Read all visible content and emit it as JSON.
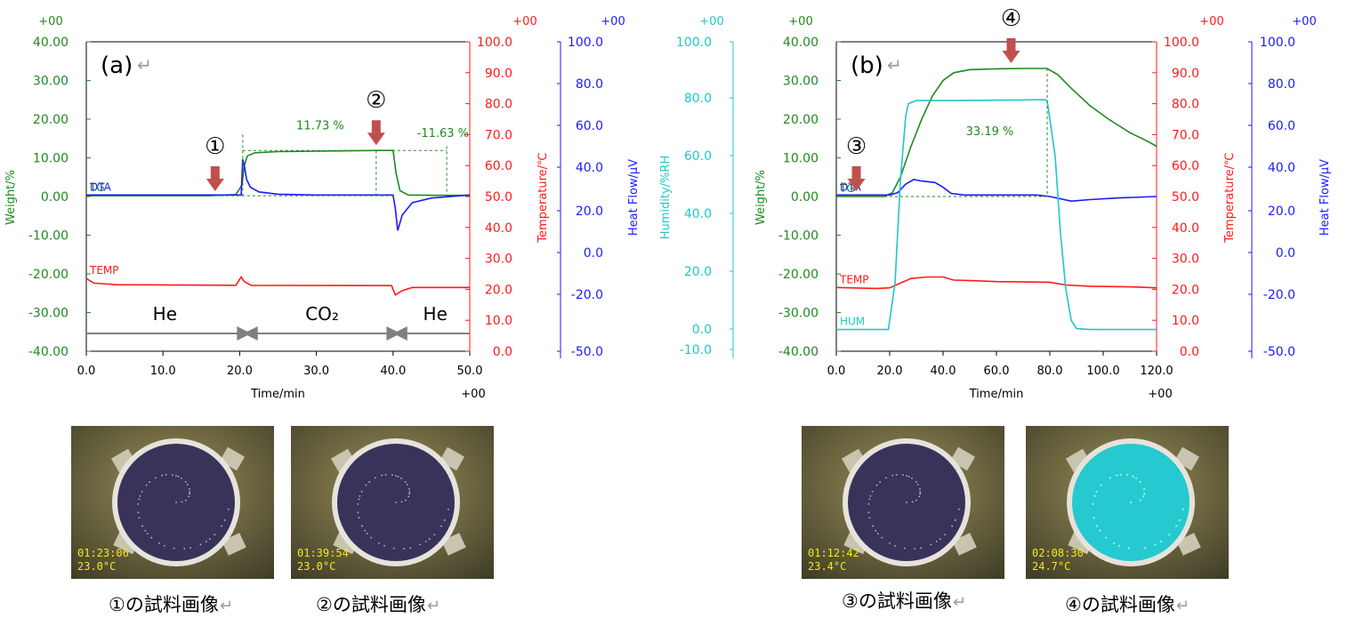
{
  "colors": {
    "weight": "#1f8a1f",
    "temperature": "#ff1a1a",
    "heat_flow": "#1a1aff",
    "humidity": "#1fc8c8",
    "arrow": "#c0504d",
    "atmosphere": "#808080",
    "stamp": "#f2ea1a",
    "text": "#000000"
  },
  "chart_data": [
    {
      "id": "a",
      "type": "line",
      "panel_label": "(a)",
      "return_mark": "↵",
      "xlabel": "Time/min",
      "xlim": [
        0,
        50
      ],
      "x_ticks": [
        "0.0",
        "10.0",
        "20.0",
        "30.0",
        "40.0",
        "50.0"
      ],
      "x_tick_values": [
        0,
        10,
        20,
        30,
        40,
        50
      ],
      "x_exp": "+00",
      "axes": {
        "weight": {
          "label": "Weight/%",
          "exp": "+00",
          "ylim": [
            -40,
            40
          ],
          "ticks": [
            "40.00",
            "30.00",
            "20.00",
            "10.00",
            "0.00",
            "-10.00",
            "-20.00",
            "-30.00",
            "-40.00"
          ],
          "tick_values": [
            40,
            30,
            20,
            10,
            0,
            -10,
            -20,
            -30,
            -40
          ]
        },
        "temperature": {
          "label": "Temperature/℃",
          "exp": "+00",
          "ylim": [
            0,
            100
          ],
          "ticks": [
            "100.0",
            "90.0",
            "80.0",
            "70.0",
            "60.0",
            "50.0",
            "40.0",
            "30.0",
            "20.0",
            "10.0",
            "0.0"
          ],
          "tick_values": [
            100,
            90,
            80,
            70,
            60,
            50,
            40,
            30,
            20,
            10,
            0
          ]
        },
        "heat_flow": {
          "label": "Heat Flow/μV",
          "exp": "+00",
          "ticks": [
            "100.0",
            "80.0",
            "60.0",
            "40.0",
            "20.0",
            "0.0",
            "-20.0",
            "-50.0"
          ],
          "tick_values": [
            100,
            80,
            60,
            40,
            20,
            0,
            -20,
            -50
          ],
          "tick_temp_positions": [
            100,
            90,
            80,
            70,
            60,
            50,
            40,
            30,
            20,
            10,
            0
          ]
        }
      },
      "series": [
        {
          "name": "TG",
          "axis": "weight",
          "color_key": "weight",
          "points": [
            [
              0,
              0.2
            ],
            [
              16,
              0.2
            ],
            [
              19.5,
              0.5
            ],
            [
              20.3,
              3
            ],
            [
              20.6,
              8
            ],
            [
              21,
              10.5
            ],
            [
              22,
              11.3
            ],
            [
              25,
              11.6
            ],
            [
              38,
              11.9
            ],
            [
              40,
              11.9
            ],
            [
              40.4,
              6
            ],
            [
              40.9,
              1.5
            ],
            [
              42,
              0.4
            ],
            [
              46,
              0.3
            ],
            [
              50,
              0.3
            ]
          ]
        },
        {
          "name": "DTA",
          "axis": "heat_flow",
          "color_key": "heat_flow",
          "points": [
            [
              0,
              1
            ],
            [
              20.2,
              1
            ],
            [
              20.4,
              24
            ],
            [
              20.6,
              20
            ],
            [
              20.9,
              11
            ],
            [
              21.4,
              6
            ],
            [
              22.5,
              3
            ],
            [
              25,
              1.5
            ],
            [
              30,
              1
            ],
            [
              40,
              1
            ],
            [
              40.3,
              -8
            ],
            [
              40.6,
              -22
            ],
            [
              41.2,
              -12
            ],
            [
              42.5,
              -4
            ],
            [
              45,
              -1
            ],
            [
              50,
              1
            ]
          ]
        },
        {
          "name": "TEMP",
          "axis": "temperature",
          "color_key": "temperature",
          "points": [
            [
              0,
              23.5
            ],
            [
              1,
              22
            ],
            [
              4,
              21.5
            ],
            [
              19.5,
              21.3
            ],
            [
              20.2,
              24
            ],
            [
              20.6,
              22.5
            ],
            [
              21.5,
              21.3
            ],
            [
              39.8,
              21.2
            ],
            [
              40.3,
              18.2
            ],
            [
              41.2,
              19.6
            ],
            [
              42.5,
              20.6
            ],
            [
              50,
              20.6
            ]
          ]
        }
      ],
      "annotations": {
        "markers": [
          {
            "label": "①",
            "x": 16.8,
            "weight": 0,
            "axis": "weight"
          },
          {
            "label": "②",
            "x": 37.8,
            "weight": 11.9,
            "axis": "weight"
          }
        ],
        "steps": [
          {
            "label": "11.73 %",
            "x": 30.5,
            "weight": 18.5
          },
          {
            "label": "-11.63 %",
            "x": 46.5,
            "weight": 16.5
          }
        ],
        "atmosphere": [
          {
            "label": "He",
            "x_range": [
              0,
              20.5
            ]
          },
          {
            "label": "CO₂",
            "x_range": [
              21.5,
              40
            ]
          },
          {
            "label": "He",
            "x_range": [
              41,
              50
            ]
          }
        ]
      }
    },
    {
      "id": "b",
      "type": "line",
      "panel_label": "(b)",
      "return_mark": "↵",
      "xlabel": "Time/min",
      "xlim": [
        0,
        120
      ],
      "x_ticks": [
        "0.0",
        "20.0",
        "40.0",
        "60.0",
        "80.0",
        "100.0",
        "120.0"
      ],
      "x_tick_values": [
        0,
        20,
        40,
        60,
        80,
        100,
        120
      ],
      "x_exp": "+00",
      "axes": {
        "humidity": {
          "label": "Humidity/%RH",
          "exp": "+00",
          "ticks": [
            "100.0",
            "80.0",
            "60.0",
            "40.0",
            "20.0",
            "0.0",
            "-10.0"
          ],
          "tick_values": [
            100,
            80,
            60,
            40,
            20,
            0,
            -10
          ]
        },
        "weight": {
          "label": "Weight/%",
          "exp": "+00",
          "ylim": [
            -40,
            40
          ],
          "ticks": [
            "40.00",
            "30.00",
            "20.00",
            "10.00",
            "0.00",
            "-10.00",
            "-20.00",
            "-30.00",
            "-40.00"
          ],
          "tick_values": [
            40,
            30,
            20,
            10,
            0,
            -10,
            -20,
            -30,
            -40
          ]
        },
        "temperature": {
          "label": "Temperature/℃",
          "exp": "+00",
          "ylim": [
            0,
            100
          ],
          "ticks": [
            "100.0",
            "90.0",
            "80.0",
            "70.0",
            "60.0",
            "50.0",
            "40.0",
            "30.0",
            "20.0",
            "10.0",
            "0.0"
          ],
          "tick_values": [
            100,
            90,
            80,
            70,
            60,
            50,
            40,
            30,
            20,
            10,
            0
          ]
        },
        "heat_flow": {
          "label": "Heat Flow/μV",
          "exp": "+00",
          "ticks": [
            "100.0",
            "80.0",
            "60.0",
            "40.0",
            "20.0",
            "0.0",
            "-20.0",
            "-50.0"
          ],
          "tick_values": [
            100,
            80,
            60,
            40,
            20,
            0,
            -20,
            -50
          ],
          "tick_temp_positions": [
            100,
            90,
            80,
            70,
            60,
            50,
            40,
            30,
            20,
            10,
            0
          ]
        }
      },
      "series": [
        {
          "name": "TG",
          "axis": "weight",
          "color_key": "weight",
          "points": [
            [
              0,
              0
            ],
            [
              18,
              0
            ],
            [
              21,
              1
            ],
            [
              24,
              5
            ],
            [
              28,
              13
            ],
            [
              32,
              20
            ],
            [
              36,
              26
            ],
            [
              40,
              30
            ],
            [
              44,
              32
            ],
            [
              50,
              32.8
            ],
            [
              60,
              33
            ],
            [
              70,
              33.1
            ],
            [
              79,
              33.1
            ],
            [
              83,
              31.5
            ],
            [
              88,
              28
            ],
            [
              95,
              23.5
            ],
            [
              102,
              20
            ],
            [
              110,
              16.5
            ],
            [
              116,
              14.5
            ],
            [
              120,
              13
            ]
          ]
        },
        {
          "name": "DTA",
          "axis": "heat_flow",
          "color_key": "heat_flow",
          "points": [
            [
              0,
              1
            ],
            [
              20,
              1
            ],
            [
              23,
              2.5
            ],
            [
              26,
              8
            ],
            [
              29,
              11
            ],
            [
              32,
              10
            ],
            [
              37,
              9
            ],
            [
              40,
              6
            ],
            [
              43,
              2
            ],
            [
              48,
              1
            ],
            [
              75,
              1
            ],
            [
              80,
              0
            ],
            [
              88,
              -3
            ],
            [
              95,
              -2
            ],
            [
              105,
              -1
            ],
            [
              120,
              0
            ]
          ]
        },
        {
          "name": "TEMP",
          "axis": "temperature",
          "color_key": "temperature",
          "points": [
            [
              0,
              20.6
            ],
            [
              15,
              20.3
            ],
            [
              20,
              20.5
            ],
            [
              24,
              22
            ],
            [
              28,
              23.5
            ],
            [
              34,
              24
            ],
            [
              40,
              24
            ],
            [
              44,
              23
            ],
            [
              52,
              22.8
            ],
            [
              60,
              22.5
            ],
            [
              80,
              22.3
            ],
            [
              86,
              21.4
            ],
            [
              95,
              21
            ],
            [
              110,
              20.8
            ],
            [
              120,
              20.5
            ]
          ]
        },
        {
          "name": "HUM",
          "axis": "temperature",
          "color_key": "humidity",
          "points": [
            [
              0,
              7
            ],
            [
              19.5,
              7
            ],
            [
              22,
              22
            ],
            [
              24,
              55
            ],
            [
              26,
              76
            ],
            [
              27,
              80
            ],
            [
              30,
              81
            ],
            [
              45,
              81
            ],
            [
              78,
              81.3
            ],
            [
              79,
              81
            ],
            [
              82,
              63
            ],
            [
              84,
              38
            ],
            [
              86,
              20
            ],
            [
              88,
              10
            ],
            [
              90,
              7.3
            ],
            [
              95,
              7
            ],
            [
              120,
              7
            ]
          ]
        }
      ],
      "annotations": {
        "markers": [
          {
            "label": "③",
            "x": 7.5,
            "weight": 0,
            "axis": "weight"
          },
          {
            "label": "④",
            "x": 65.5,
            "weight": 33.1,
            "axis": "weight"
          }
        ],
        "steps": [
          {
            "label": "33.19 %",
            "x": 57.5,
            "weight": 17.0
          }
        ]
      }
    }
  ],
  "photos": [
    {
      "caption": "①の試料画像",
      "time": "01:23:06",
      "temp": "23.0°C",
      "color": "#39335a",
      "speckle": true
    },
    {
      "caption": "②の試料画像",
      "time": "01:39:54",
      "temp": "23.0°C",
      "color": "#39335a",
      "speckle": true
    },
    {
      "caption": "③の試料画像",
      "time": "01:12:42",
      "temp": "23.4°C",
      "color": "#39335a",
      "speckle": true
    },
    {
      "caption": "④の試料画像",
      "time": "02:08:30",
      "temp": "24.7°C",
      "color": "#25c9cf",
      "speckle": false
    }
  ]
}
